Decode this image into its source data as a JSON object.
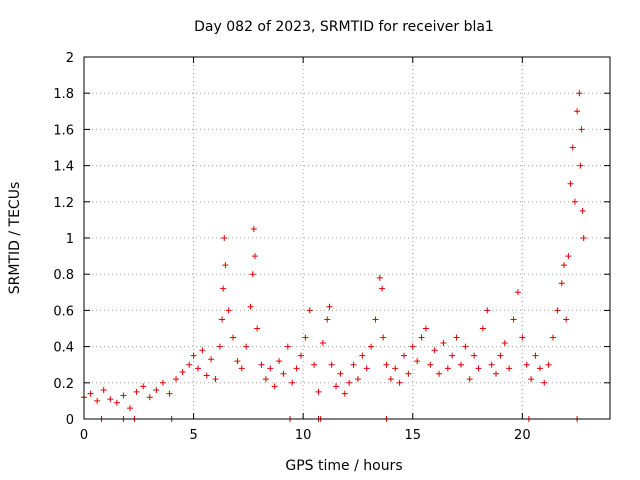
{
  "chart_data": {
    "type": "scatter",
    "title": "Day 082 of 2023, SRMTID for receiver bla1",
    "xlabel": "GPS time / hours",
    "ylabel": "SRMTID / TECUs",
    "xlim": [
      0,
      24
    ],
    "ylim": [
      0,
      2
    ],
    "x_ticks": [
      0,
      5,
      10,
      15,
      20
    ],
    "x_tick_labels": [
      "0",
      "5",
      "10",
      "15",
      "20"
    ],
    "y_ticks": [
      0,
      0.2,
      0.4,
      0.6,
      0.8,
      1,
      1.2,
      1.4,
      1.6,
      1.8,
      2
    ],
    "y_tick_labels": [
      "0",
      "0.2",
      "0.4",
      "0.6",
      "0.8",
      "1",
      "1.2",
      "1.4",
      "1.6",
      "1.8",
      "2"
    ],
    "grid": true,
    "marker": "+",
    "color": "#e00000",
    "series": [
      {
        "name": "SRMTID",
        "x": [
          0.0,
          0.3,
          0.6,
          0.9,
          1.2,
          1.5,
          1.8,
          2.1,
          2.4,
          2.7,
          3.0,
          3.3,
          3.6,
          3.9,
          4.2,
          4.5,
          4.8,
          5.0,
          5.2,
          5.4,
          5.6,
          5.8,
          6.0,
          6.2,
          6.3,
          6.35,
          6.4,
          6.45,
          6.6,
          6.8,
          7.0,
          7.2,
          7.4,
          7.6,
          7.7,
          7.75,
          7.8,
          7.9,
          8.1,
          8.3,
          8.5,
          8.7,
          8.9,
          9.1,
          9.3,
          9.5,
          9.7,
          9.9,
          10.1,
          10.3,
          10.5,
          10.7,
          10.9,
          11.1,
          11.2,
          11.3,
          11.5,
          11.7,
          11.9,
          12.1,
          12.3,
          12.5,
          12.7,
          12.9,
          13.1,
          13.3,
          13.5,
          13.6,
          13.65,
          13.8,
          14.0,
          14.2,
          14.4,
          14.6,
          14.8,
          15.0,
          15.2,
          15.4,
          15.6,
          15.8,
          16.0,
          16.2,
          16.4,
          16.6,
          16.8,
          17.0,
          17.2,
          17.4,
          17.6,
          17.8,
          18.0,
          18.2,
          18.4,
          18.6,
          18.8,
          19.0,
          19.2,
          19.4,
          19.6,
          19.8,
          20.0,
          20.2,
          20.4,
          20.6,
          20.8,
          21.0,
          21.2,
          21.4,
          21.6,
          21.8,
          21.9,
          22.0,
          22.1,
          22.2,
          22.3,
          22.4,
          22.5,
          22.6,
          22.65,
          22.7,
          22.75,
          22.8
        ],
        "y": [
          0.12,
          0.14,
          0.1,
          0.16,
          0.11,
          0.09,
          0.13,
          0.06,
          0.15,
          0.18,
          0.12,
          0.16,
          0.2,
          0.14,
          0.22,
          0.26,
          0.3,
          0.35,
          0.28,
          0.38,
          0.24,
          0.33,
          0.22,
          0.4,
          0.55,
          0.72,
          1.0,
          0.85,
          0.6,
          0.45,
          0.32,
          0.28,
          0.4,
          0.62,
          0.8,
          1.05,
          0.9,
          0.5,
          0.3,
          0.22,
          0.28,
          0.18,
          0.32,
          0.25,
          0.4,
          0.2,
          0.28,
          0.35,
          0.45,
          0.6,
          0.3,
          0.15,
          0.42,
          0.55,
          0.62,
          0.3,
          0.18,
          0.25,
          0.14,
          0.2,
          0.3,
          0.22,
          0.35,
          0.28,
          0.4,
          0.55,
          0.78,
          0.72,
          0.45,
          0.3,
          0.22,
          0.28,
          0.2,
          0.35,
          0.25,
          0.4,
          0.32,
          0.45,
          0.5,
          0.3,
          0.38,
          0.25,
          0.42,
          0.28,
          0.35,
          0.45,
          0.3,
          0.4,
          0.22,
          0.35,
          0.28,
          0.5,
          0.6,
          0.3,
          0.25,
          0.35,
          0.42,
          0.28,
          0.55,
          0.7,
          0.45,
          0.3,
          0.22,
          0.35,
          0.28,
          0.2,
          0.3,
          0.45,
          0.6,
          0.75,
          0.85,
          0.55,
          0.9,
          1.3,
          1.5,
          1.2,
          1.7,
          1.8,
          1.4,
          1.6,
          1.15,
          1.0
        ]
      }
    ],
    "zero_line_markers_x": [
      0.8,
      1.8,
      2.3,
      4.0,
      9.4,
      10.7,
      10.8,
      13.8,
      20.3,
      22.5
    ]
  }
}
